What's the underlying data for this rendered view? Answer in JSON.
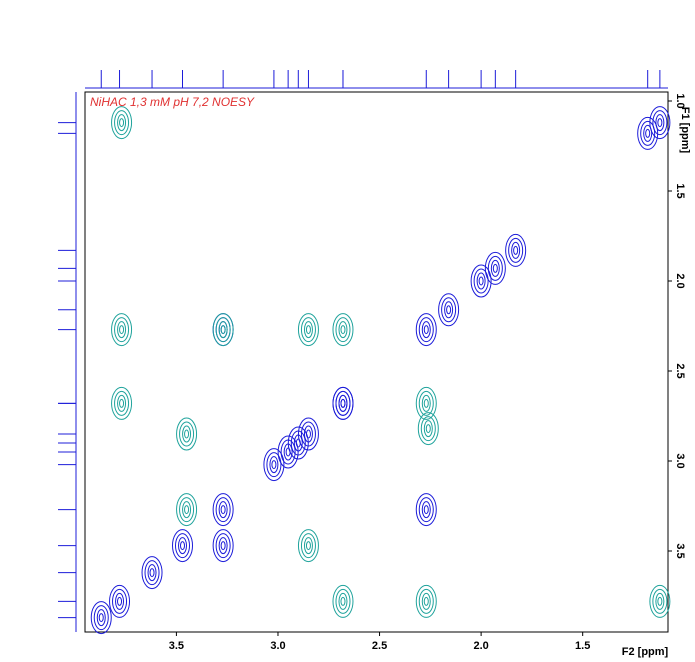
{
  "chart_data": {
    "type": "contour",
    "title": "NiHAC 1,3 mM pH 7,2 NOESY",
    "x_label": "F2 [ppm]",
    "y_label": "F1 [ppm]",
    "xlim": [
      3.95,
      1.08
    ],
    "ylim": [
      0.95,
      3.95
    ],
    "xticks": [
      3.5,
      {
        "value": 3,
        "label": "3.0"
      },
      2.5,
      {
        "value": 2,
        "label": "2.0"
      },
      1.5
    ],
    "yticks": [
      {
        "value": 1,
        "label": "1.0"
      },
      1.5,
      {
        "value": 2,
        "label": "2.0"
      },
      2.5,
      {
        "value": 3,
        "label": "3.0"
      },
      3.5
    ],
    "series": [
      {
        "color": "#1c1cd9",
        "x": [
          3.87,
          3.78,
          3.62,
          3.47,
          3.27,
          3.02,
          2.95,
          2.9,
          2.85,
          2.68,
          2.27,
          2.16,
          2.0,
          1.93,
          1.83,
          1.18,
          1.12,
          3.27,
          2.27,
          3.27,
          2.68
        ],
        "y": [
          3.87,
          3.78,
          3.62,
          3.47,
          3.27,
          3.02,
          2.95,
          2.9,
          2.85,
          2.68,
          2.27,
          2.16,
          2.0,
          1.93,
          1.83,
          1.18,
          1.12,
          2.27,
          3.27,
          3.47,
          2.68
        ]
      },
      {
        "color": "#1fa39c",
        "x": [
          3.77,
          3.77,
          2.85,
          2.68,
          3.77,
          3.45,
          2.27,
          3.45,
          2.85,
          2.68,
          2.27,
          1.12,
          2.26,
          3.27
        ],
        "y": [
          1.12,
          2.27,
          2.27,
          2.27,
          2.68,
          2.85,
          2.68,
          3.27,
          3.47,
          3.78,
          3.78,
          3.78,
          2.82,
          2.27
        ]
      }
    ]
  }
}
